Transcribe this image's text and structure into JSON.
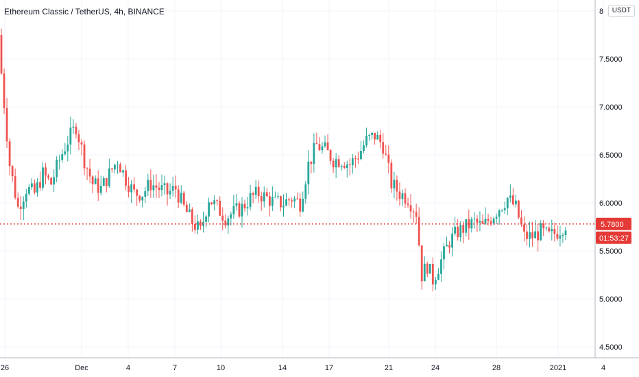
{
  "header": {
    "title": "Ethereum Classic / TetherUS, 4h, BINANCE",
    "currency": "USDT"
  },
  "colors": {
    "up": "#26a69a",
    "down": "#ef5350",
    "grid": "#f0f3fa",
    "axis_text": "#131722",
    "price_line": "#e53935"
  },
  "chart_data": {
    "type": "candlestick",
    "title": "Ethereum Classic / TetherUS, 4h, BINANCE",
    "xlabel": "",
    "ylabel": "",
    "ylim": [
      4.43,
      8.0
    ],
    "grid": true,
    "y_ticks": [
      "8",
      "7.5000",
      "7.0000",
      "6.5000",
      "6.0000",
      "5.5000",
      "5.0000",
      "4.5000"
    ],
    "x_ticks": [
      "26",
      "Dec",
      "4",
      "7",
      "10",
      "14",
      "17",
      "21",
      "24",
      "28",
      "2021",
      "4"
    ],
    "last_price": {
      "label": "5.7800",
      "value": 5.78
    },
    "countdown": "01:53:27",
    "anchors": [
      [
        0,
        7.35
      ],
      [
        3,
        6.4
      ],
      [
        6,
        5.95
      ],
      [
        9,
        6.15
      ],
      [
        12,
        6.1
      ],
      [
        15,
        6.3
      ],
      [
        18,
        6.2
      ],
      [
        21,
        6.45
      ],
      [
        24,
        6.65
      ],
      [
        27,
        6.8
      ],
      [
        30,
        6.45
      ],
      [
        33,
        6.2
      ],
      [
        36,
        6.15
      ],
      [
        39,
        6.3
      ],
      [
        42,
        6.45
      ],
      [
        45,
        6.25
      ],
      [
        48,
        6.1
      ],
      [
        51,
        6.1
      ],
      [
        54,
        6.2
      ],
      [
        57,
        6.15
      ],
      [
        60,
        6.1
      ],
      [
        63,
        6.15
      ],
      [
        66,
        5.95
      ],
      [
        69,
        5.8
      ],
      [
        72,
        5.7
      ],
      [
        75,
        6.05
      ],
      [
        78,
        5.95
      ],
      [
        81,
        5.85
      ],
      [
        84,
        5.9
      ],
      [
        87,
        5.95
      ],
      [
        90,
        6.05
      ],
      [
        93,
        6.1
      ],
      [
        96,
        6.05
      ],
      [
        99,
        6.0
      ],
      [
        102,
        6.0
      ],
      [
        105,
        6.05
      ],
      [
        108,
        6.0
      ],
      [
        111,
        6.4
      ],
      [
        114,
        6.6
      ],
      [
        117,
        6.55
      ],
      [
        120,
        6.45
      ],
      [
        123,
        6.45
      ],
      [
        126,
        6.4
      ],
      [
        129,
        6.5
      ],
      [
        132,
        6.65
      ],
      [
        135,
        6.7
      ],
      [
        138,
        6.6
      ],
      [
        141,
        6.2
      ],
      [
        144,
        6.1
      ],
      [
        147,
        6.05
      ],
      [
        150,
        5.9
      ],
      [
        152,
        5.25
      ],
      [
        154,
        5.35
      ],
      [
        156,
        5.2
      ],
      [
        159,
        5.4
      ],
      [
        162,
        5.6
      ],
      [
        165,
        5.7
      ],
      [
        168,
        5.75
      ],
      [
        171,
        5.8
      ],
      [
        174,
        5.75
      ],
      [
        177,
        5.85
      ],
      [
        180,
        5.95
      ],
      [
        183,
        6.05
      ],
      [
        186,
        5.95
      ],
      [
        189,
        5.65
      ],
      [
        192,
        5.65
      ],
      [
        195,
        5.7
      ],
      [
        198,
        5.65
      ],
      [
        201,
        5.7
      ],
      [
        204,
        5.78
      ]
    ],
    "series_note_units": "price in USDT"
  }
}
